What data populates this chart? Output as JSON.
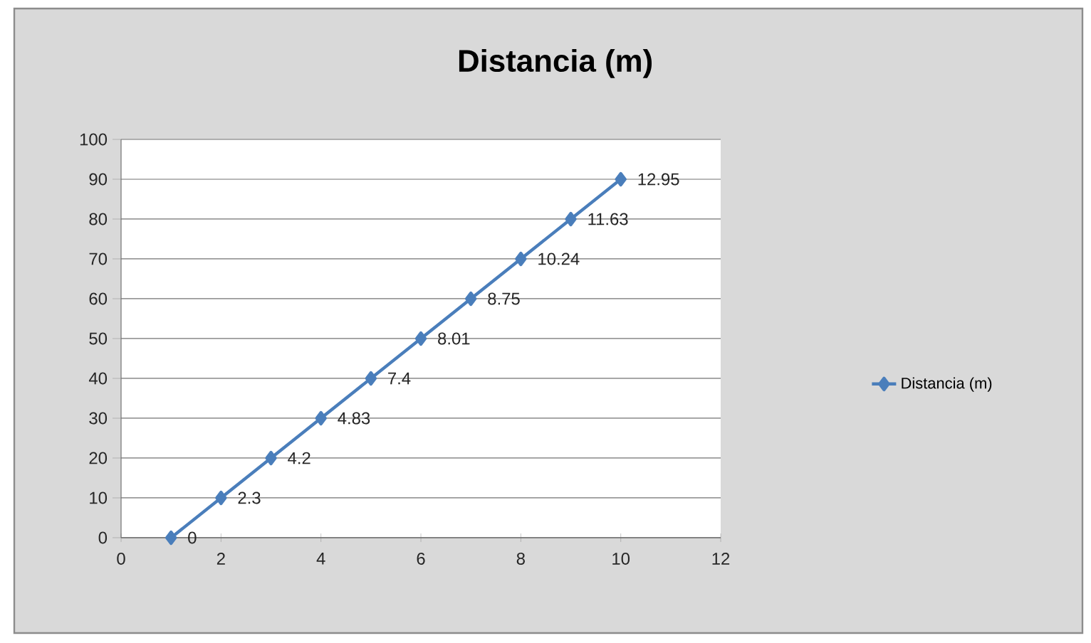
{
  "chart_data": {
    "type": "line",
    "title": "Distancia (m)",
    "x": [
      1,
      2,
      3,
      4,
      5,
      6,
      7,
      8,
      9,
      10
    ],
    "series": [
      {
        "name": "Distancia (m)",
        "color": "#4a7ebb",
        "values": [
          0,
          10,
          20,
          30,
          40,
          50,
          60,
          70,
          80,
          90
        ]
      }
    ],
    "annotations": [
      {
        "text": "0",
        "x": 1,
        "y": 0
      },
      {
        "text": "2.3",
        "x": 2,
        "y": 10
      },
      {
        "text": "4.2",
        "x": 3,
        "y": 20
      },
      {
        "text": "4.83",
        "x": 4,
        "y": 30
      },
      {
        "text": "7.4",
        "x": 5,
        "y": 40
      },
      {
        "text": "8.01",
        "x": 6,
        "y": 50
      },
      {
        "text": "8.75",
        "x": 7,
        "y": 60
      },
      {
        "text": "10.24",
        "x": 8,
        "y": 70
      },
      {
        "text": "11.63",
        "x": 9,
        "y": 80
      },
      {
        "text": "12.95",
        "x": 10,
        "y": 90
      }
    ],
    "xlim": [
      0,
      12
    ],
    "xticks": [
      0,
      2,
      4,
      6,
      8,
      10,
      12
    ],
    "ylim": [
      0,
      100
    ],
    "yticks": [
      0,
      10,
      20,
      30,
      40,
      50,
      60,
      70,
      80,
      90,
      100
    ],
    "grid": "y",
    "legend": "right",
    "marker": "diamond",
    "line_style": "solid"
  }
}
